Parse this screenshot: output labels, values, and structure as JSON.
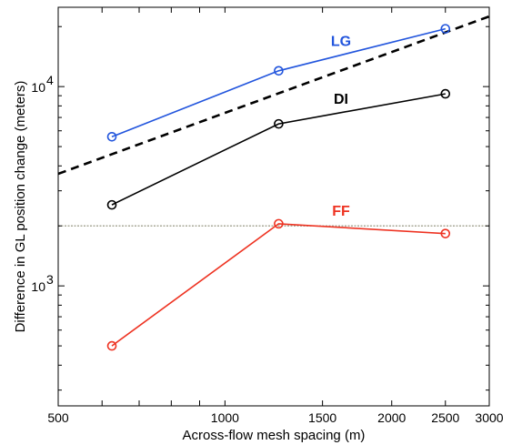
{
  "chart_data": {
    "type": "line",
    "xlabel": "Across-flow mesh spacing (m)",
    "ylabel": "Difference in GL position change (meters)",
    "xscale": "log",
    "yscale": "log",
    "xlim": [
      500,
      3000
    ],
    "ylim": [
      250,
      25000
    ],
    "xticks": [
      {
        "value": 500,
        "label": "500"
      },
      {
        "value": 1000,
        "label": "1000"
      },
      {
        "value": 1500,
        "label": "1500"
      },
      {
        "value": 2000,
        "label": "2000"
      },
      {
        "value": 2500,
        "label": "2500"
      },
      {
        "value": 3000,
        "label": "3000"
      }
    ],
    "yticks": [
      {
        "value": 1000,
        "label": "10",
        "exp": "3"
      },
      {
        "value": 10000,
        "label": "10",
        "exp": "4"
      }
    ],
    "series": [
      {
        "name": "LG",
        "color": "#2255dd",
        "x": [
          625,
          1250,
          2500
        ],
        "y": [
          5600,
          12000,
          19500
        ],
        "marker": "circle",
        "style": "solid"
      },
      {
        "name": "DI",
        "color": "#000000",
        "x": [
          625,
          1250,
          2500
        ],
        "y": [
          2550,
          6500,
          9200
        ],
        "marker": "circle",
        "style": "solid"
      },
      {
        "name": "FF",
        "color": "#ee3322",
        "x": [
          625,
          1250,
          2500
        ],
        "y": [
          500,
          2050,
          1830
        ],
        "marker": "circle",
        "style": "solid"
      }
    ],
    "reference_lines": [
      {
        "kind": "dashed-trend",
        "color": "#000000",
        "x": [
          500,
          3000
        ],
        "y": [
          3650,
          22500
        ]
      },
      {
        "kind": "horizontal",
        "color": "#aaaa99",
        "y": 2000
      }
    ],
    "grid": false,
    "legend": "none"
  }
}
